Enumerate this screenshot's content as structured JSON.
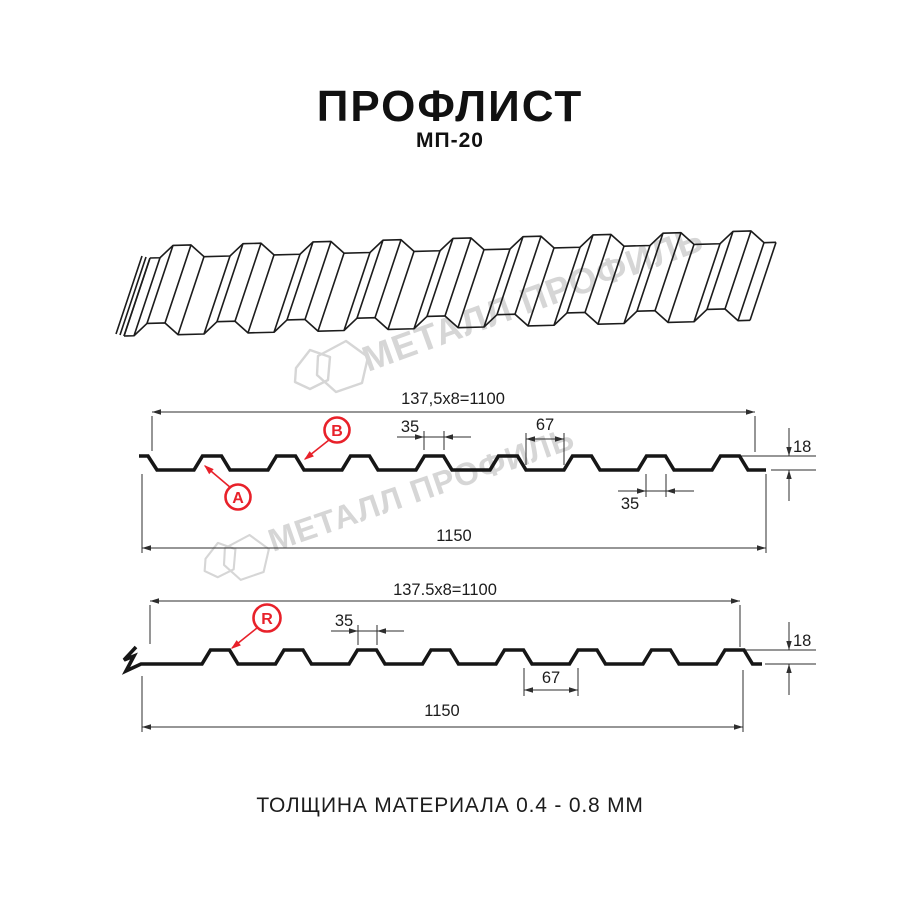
{
  "title": "ПРОФЛИСТ",
  "subtitle": "МП-20",
  "footer": "ТОЛЩИНА МАТЕРИАЛА 0.4 - 0.8 ММ",
  "watermark": {
    "text": "МЕТАЛЛ ПРОФИЛЬ"
  },
  "colors": {
    "accent_red": "#e8212a",
    "watermark_gray": "#d6d6d6",
    "line": "#2e2e2e"
  },
  "section1": {
    "top_dim": "137,5x8=1100",
    "bottom_dim": "1150",
    "rib_top_width": "35",
    "trough_width": "67",
    "rib_width_lower": "35",
    "height": "18",
    "label_a": "A",
    "label_b": "B"
  },
  "section2": {
    "top_dim": "137.5x8=1100",
    "bottom_dim": "1150",
    "rib_top_width": "35",
    "trough_width": "67",
    "height": "18",
    "label_r": "R"
  }
}
